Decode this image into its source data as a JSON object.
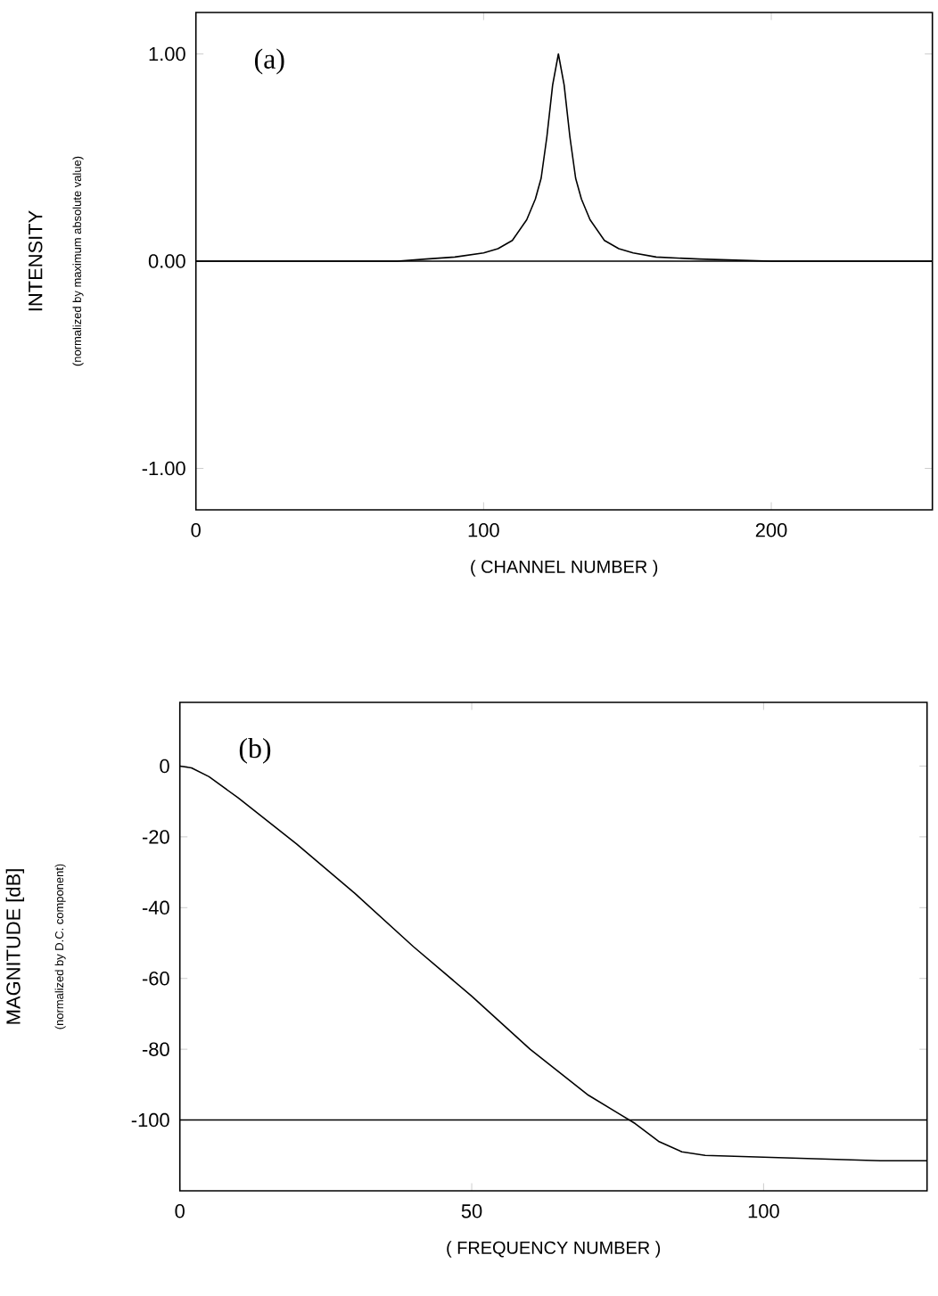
{
  "chart_data": [
    {
      "type": "line",
      "xlabel": "( CHANNEL NUMBER )",
      "ylabel": "INTENSITY",
      "annotations": [
        "(a)",
        "(normalized by maximum absolute value)"
      ],
      "x": [
        0,
        40,
        70,
        80,
        90,
        100,
        105,
        110,
        115,
        118,
        120,
        122,
        124,
        126,
        128,
        130,
        132,
        134,
        137,
        142,
        147,
        152,
        160,
        175,
        200,
        256
      ],
      "values": [
        0,
        0,
        0.0,
        0.01,
        0.02,
        0.04,
        0.06,
        0.1,
        0.2,
        0.3,
        0.4,
        0.6,
        0.85,
        1.0,
        0.85,
        0.6,
        0.4,
        0.3,
        0.2,
        0.1,
        0.06,
        0.04,
        0.02,
        0.01,
        0,
        0
      ],
      "color": "#000000",
      "xlim": [
        0,
        256
      ],
      "ylim": [
        -1.2,
        1.2
      ],
      "xticks": [
        0,
        100,
        200
      ],
      "yticks": [
        {
          "value": -1,
          "label": "-1.00"
        },
        {
          "value": 0,
          "label": "0.00"
        },
        {
          "value": 1,
          "label": "1.00"
        }
      ],
      "ref_lines": [
        {
          "axis": "y",
          "value": 0
        }
      ]
    },
    {
      "type": "line",
      "xlabel": "( FREQUENCY NUMBER )",
      "ylabel": "MAGNITUDE [dB]",
      "annotations": [
        "(b)",
        "(normalized by D.C. component)"
      ],
      "x": [
        0,
        2,
        5,
        10,
        20,
        30,
        40,
        50,
        60,
        70,
        75,
        78,
        82,
        86,
        90,
        100,
        110,
        120,
        128
      ],
      "values": [
        0,
        -0.5,
        -3,
        -9,
        -22,
        -36,
        -51,
        -65,
        -80,
        -93,
        -98,
        -101,
        -106,
        -109,
        -110,
        -110.5,
        -111,
        -111.5,
        -111.5
      ],
      "color": "#000000",
      "xlim": [
        0,
        128
      ],
      "ylim": [
        -120,
        18
      ],
      "xticks": [
        0,
        50,
        100
      ],
      "yticks": [
        -100,
        -80,
        -60,
        -40,
        -20,
        0
      ],
      "ref_lines": [
        {
          "axis": "y",
          "value": -100
        }
      ]
    }
  ]
}
